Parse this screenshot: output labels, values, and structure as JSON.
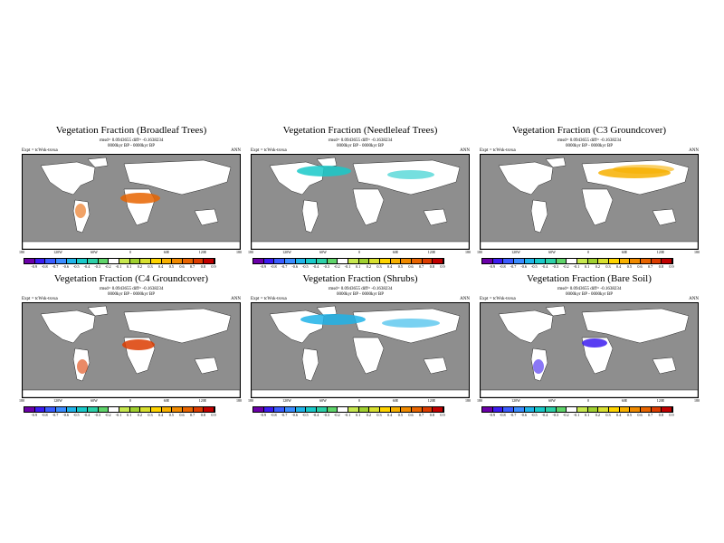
{
  "colorbar": {
    "colors": [
      "#6a00a8",
      "#3c1cf0",
      "#3b5cff",
      "#3b8cff",
      "#20b3e8",
      "#19c9c9",
      "#2dd0a8",
      "#5fd46a",
      "#ffffff",
      "#c7e84f",
      "#a0d030",
      "#d8e030",
      "#ffd400",
      "#f7b000",
      "#f08a00",
      "#e86400",
      "#dc3c00",
      "#c00000"
    ],
    "labels_a": [
      "-0.9",
      "-0.8",
      "-0.7",
      "-0.6",
      "-0.5",
      "-0.4",
      "-0.3",
      "-0.2",
      "-0.1",
      "0.1",
      "0.2",
      "0.3",
      "0.4",
      "0.5",
      "0.6",
      "0.7",
      "0.8",
      "0.9"
    ],
    "labels_b": [
      "-0.9",
      "-0.8",
      "-0.7",
      "-0.6",
      "-0.5",
      "-0.4",
      "-0.3",
      "-0.2",
      "-0.1",
      "0.1",
      "0.2",
      "0.3",
      "0.4",
      "0.5",
      "0.6",
      "0.7",
      "0.8",
      "0.9"
    ]
  },
  "axes": {
    "lat_labels": [
      "80N",
      "40N",
      "0",
      "40S",
      "80S"
    ],
    "lon_labels_a": [
      "180",
      "120W",
      "60W",
      "0",
      "60E",
      "120E",
      "180"
    ],
    "lon_labels_b": [
      "180",
      "120W",
      "60W",
      "0",
      "60E",
      "120E",
      "180"
    ]
  },
  "panels": [
    {
      "title": "Vegetation Fraction (Broadleaf Trees)",
      "meta1": "rmsd= 0.0943655 diff= -0.1638234",
      "meta2": "0000kyr BP - 0000kyr BP",
      "expt": "Expt = tcWsk-tsvua",
      "ann": "ANN",
      "accent": "#e86400"
    },
    {
      "title": "Vegetation Fraction (Needleleaf Trees)",
      "meta1": "rmsd= 0.0943655 diff= -0.1638234",
      "meta2": "0000kyr BP - 0000kyr BP",
      "expt": "Expt = tcWsk-tsvua",
      "ann": "ANN",
      "accent": "#19c9c9"
    },
    {
      "title": "Vegetation Fraction (C3 Groundcover)",
      "meta1": "rmsd= 0.0943655 diff= -0.1638234",
      "meta2": "0000kyr BP - 0000kyr BP",
      "expt": "Expt = tcWsk-tsvua",
      "ann": "ANN",
      "accent": "#f7b000"
    },
    {
      "title": "Vegetation Fraction (C4 Groundcover)",
      "meta1": "rmsd= 0.0943655 diff= -0.1638234",
      "meta2": "0000kyr BP - 0000kyr BP",
      "expt": "Expt = tcWsk-tsvua",
      "ann": "ANN",
      "accent": "#dc3c00"
    },
    {
      "title": "Vegetation Fraction (Shrubs)",
      "meta1": "rmsd= 0.0943655 diff= -0.1638234",
      "meta2": "0000kyr BP - 0000kyr BP",
      "expt": "Expt = tcWsk-tsvua",
      "ann": "ANN",
      "accent": "#20b3e8"
    },
    {
      "title": "Vegetation Fraction (Bare Soil)",
      "meta1": "rmsd= 0.0943655 diff= -0.1638234",
      "meta2": "0000kyr BP - 0000kyr BP",
      "expt": "Expt = tcWsk-tsvua",
      "ann": "ANN",
      "accent": "#3c1cf0"
    }
  ]
}
